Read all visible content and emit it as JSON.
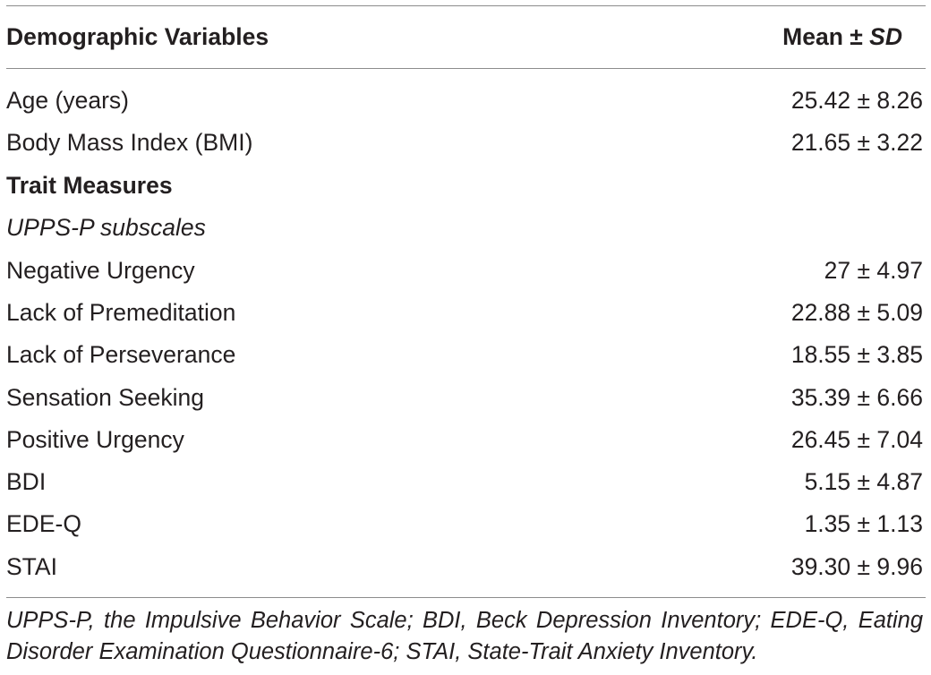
{
  "header": {
    "col_variable": "Demographic Variables",
    "col_stat_prefix": "Mean ± ",
    "col_stat_italic": "SD"
  },
  "rows": [
    {
      "label": "Age (years)",
      "value": "25.42 ± 8.26"
    },
    {
      "label": "Body Mass Index (BMI)",
      "value": "21.65 ± 3.22"
    },
    {
      "label": "Trait Measures",
      "value": ""
    },
    {
      "label": "UPPS-P subscales",
      "value": ""
    },
    {
      "label": "Negative Urgency",
      "value": "27 ± 4.97"
    },
    {
      "label": "Lack of Premeditation",
      "value": "22.88 ± 5.09"
    },
    {
      "label": "Lack of Perseverance",
      "value": "18.55 ± 3.85"
    },
    {
      "label": "Sensation Seeking",
      "value": "35.39 ± 6.66"
    },
    {
      "label": "Positive Urgency",
      "value": "26.45 ± 7.04"
    },
    {
      "label": "BDI",
      "value": "5.15 ± 4.87"
    },
    {
      "label": "EDE-Q",
      "value": "1.35 ± 1.13"
    },
    {
      "label": "STAI",
      "value": "39.30 ± 9.96"
    }
  ],
  "footnote": "UPPS-P, the Impulsive Behavior Scale; BDI, Beck Depression Inventory; EDE-Q, Eating Disorder Examination Questionnaire-6; STAI, State-Trait Anxiety Inventory."
}
